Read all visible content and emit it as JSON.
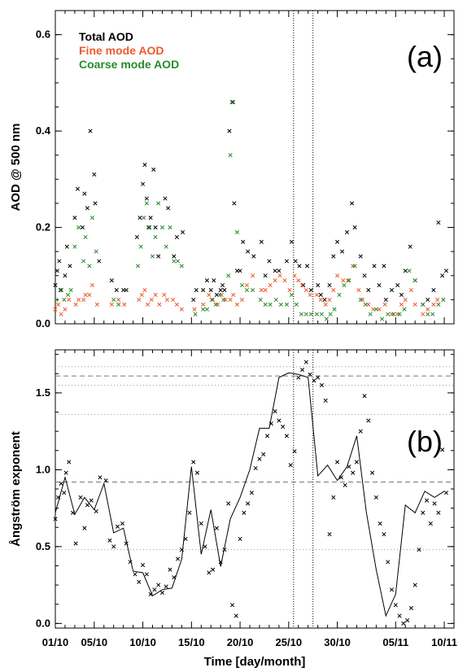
{
  "figure": {
    "xlabel": "Time [day/month]"
  },
  "chart_data": [
    {
      "panel": "a",
      "type": "scatter",
      "panel_label": "(a)",
      "ylabel": "AOD @ 500 nm",
      "xlim": [
        0,
        41
      ],
      "ylim": [
        0,
        0.65
      ],
      "yticks": [
        0.0,
        0.2,
        0.4,
        0.6
      ],
      "ytick_labels": [
        "0.0",
        "0.2",
        "0.4",
        "0.6"
      ],
      "xticks": [
        0,
        4,
        9,
        14,
        19,
        24,
        29,
        35,
        40
      ],
      "xtick_labels": [
        "01/10",
        "05/10",
        "10/10",
        "15/10",
        "20/10",
        "25/10",
        "30/10",
        "05/11",
        "10/11"
      ],
      "legend_position": "top-left",
      "vlines": [
        24.5,
        26.5
      ],
      "series": [
        {
          "name": "Total AOD",
          "color": "#000000",
          "x": [
            0.0,
            0.2,
            0.4,
            0.6,
            1.0,
            1.2,
            1.5,
            2.0,
            2.3,
            2.8,
            3.0,
            3.3,
            3.6,
            4.0,
            4.1,
            4.5,
            5.8,
            6.3,
            7.0,
            7.3,
            8.4,
            8.7,
            9.0,
            9.2,
            9.4,
            9.6,
            9.8,
            10.1,
            10.3,
            10.6,
            11.3,
            11.6,
            12.2,
            12.5,
            13.1,
            14.2,
            14.5,
            15.2,
            15.6,
            16.0,
            16.3,
            16.6,
            17.0,
            17.2,
            17.4,
            17.9,
            18.2,
            18.4,
            18.7,
            19.0,
            19.3,
            19.8,
            20.4,
            21.2,
            21.6,
            22.0,
            22.6,
            23.0,
            23.8,
            24.3,
            24.7,
            25.1,
            25.5,
            25.9,
            26.3,
            27.0,
            27.3,
            27.7,
            28.2,
            28.6,
            29.0,
            29.5,
            30.0,
            30.5,
            30.8,
            31.4,
            31.8,
            32.2,
            32.8,
            33.3,
            33.8,
            34.0,
            34.6,
            35.2,
            35.6,
            36.0,
            36.5,
            37.0,
            37.8,
            38.3,
            38.9,
            39.4,
            39.8,
            40.2
          ],
          "y": [
            0.08,
            0.11,
            0.13,
            0.07,
            0.1,
            0.16,
            0.12,
            0.22,
            0.28,
            0.2,
            0.27,
            0.24,
            0.4,
            0.31,
            0.25,
            0.13,
            0.09,
            0.07,
            0.07,
            0.07,
            0.18,
            0.22,
            0.29,
            0.33,
            0.26,
            0.2,
            0.22,
            0.32,
            0.2,
            0.14,
            0.26,
            0.24,
            0.14,
            0.18,
            0.19,
            0.05,
            0.07,
            0.07,
            0.09,
            0.07,
            0.09,
            0.06,
            0.07,
            0.08,
            0.07,
            0.4,
            0.46,
            0.25,
            0.11,
            0.11,
            0.17,
            0.15,
            0.14,
            0.17,
            0.1,
            0.13,
            0.11,
            0.11,
            0.13,
            0.17,
            0.13,
            0.12,
            0.08,
            0.12,
            0.07,
            0.08,
            0.06,
            0.05,
            0.08,
            0.14,
            0.17,
            0.15,
            0.19,
            0.25,
            0.2,
            0.14,
            0.1,
            0.07,
            0.12,
            0.08,
            0.12,
            0.05,
            0.07,
            0.08,
            0.06,
            0.11,
            0.16,
            0.09,
            0.04,
            0.05,
            0.07,
            0.21,
            0.1,
            0.11
          ]
        },
        {
          "name": "Fine mode AOD",
          "color": "#ee5b2b",
          "x": [
            0.0,
            0.3,
            0.6,
            1.0,
            1.4,
            2.1,
            2.4,
            2.9,
            3.1,
            3.5,
            3.8,
            4.3,
            5.8,
            6.5,
            7.1,
            8.6,
            8.9,
            9.2,
            9.5,
            9.9,
            10.3,
            10.7,
            11.2,
            11.5,
            12.1,
            12.5,
            13.0,
            14.3,
            15.2,
            15.8,
            16.2,
            16.7,
            17.1,
            17.5,
            18.0,
            18.3,
            18.7,
            19.2,
            19.7,
            20.3,
            21.2,
            21.6,
            22.1,
            22.6,
            23.1,
            23.6,
            24.1,
            24.6,
            25.0,
            25.4,
            25.8,
            26.2,
            26.9,
            27.3,
            27.8,
            28.2,
            28.6,
            29.0,
            29.6,
            30.1,
            30.6,
            31.2,
            31.6,
            32.2,
            32.7,
            33.3,
            33.9,
            34.6,
            35.2,
            35.6,
            36.0,
            36.6,
            37.0,
            37.8,
            38.3,
            38.9,
            39.3,
            39.9
          ],
          "y": [
            0.03,
            0.04,
            0.02,
            0.03,
            0.05,
            0.04,
            0.05,
            0.05,
            0.06,
            0.06,
            0.08,
            0.04,
            0.04,
            0.05,
            0.04,
            0.05,
            0.06,
            0.07,
            0.04,
            0.05,
            0.06,
            0.04,
            0.06,
            0.05,
            0.05,
            0.04,
            0.03,
            0.03,
            0.04,
            0.06,
            0.05,
            0.04,
            0.06,
            0.05,
            0.05,
            0.06,
            0.04,
            0.05,
            0.08,
            0.1,
            0.07,
            0.07,
            0.08,
            0.09,
            0.1,
            0.09,
            0.07,
            0.1,
            0.09,
            0.08,
            0.07,
            0.06,
            0.06,
            0.05,
            0.04,
            0.05,
            0.07,
            0.1,
            0.09,
            0.09,
            0.12,
            0.07,
            0.05,
            0.04,
            0.03,
            0.03,
            0.04,
            0.02,
            0.02,
            0.04,
            0.05,
            0.07,
            0.04,
            0.02,
            0.03,
            0.04,
            0.05,
            0.05
          ]
        },
        {
          "name": "Coarse mode AOD",
          "color": "#2a8a2a",
          "x": [
            0.1,
            0.5,
            0.9,
            1.3,
            1.6,
            2.0,
            2.4,
            2.9,
            3.1,
            3.5,
            3.8,
            4.2,
            6.0,
            6.5,
            8.5,
            8.8,
            9.1,
            9.4,
            9.7,
            10.0,
            10.3,
            10.6,
            11.0,
            11.4,
            11.8,
            12.2,
            12.6,
            13.0,
            14.4,
            15.2,
            15.6,
            16.1,
            16.5,
            16.9,
            17.3,
            17.8,
            18.0,
            18.3,
            18.7,
            19.2,
            19.7,
            20.3,
            21.1,
            21.6,
            22.1,
            22.7,
            23.2,
            23.8,
            24.3,
            24.8,
            25.3,
            25.8,
            26.3,
            26.9,
            27.4,
            27.9,
            28.3,
            28.7,
            29.2,
            29.7,
            30.2,
            30.8,
            31.4,
            31.9,
            32.4,
            33.0,
            33.6,
            34.2,
            34.8,
            35.4,
            35.9,
            36.4,
            37.0,
            37.8,
            38.3,
            38.8,
            39.4,
            39.9
          ],
          "y": [
            0.05,
            0.07,
            0.05,
            0.06,
            0.07,
            0.16,
            0.2,
            0.13,
            0.18,
            0.12,
            0.22,
            0.15,
            0.05,
            0.04,
            0.12,
            0.16,
            0.22,
            0.25,
            0.2,
            0.14,
            0.18,
            0.25,
            0.2,
            0.16,
            0.2,
            0.13,
            0.13,
            0.12,
            0.02,
            0.03,
            0.03,
            0.05,
            0.04,
            0.06,
            0.05,
            0.1,
            0.35,
            0.46,
            0.19,
            0.08,
            0.07,
            0.07,
            0.05,
            0.04,
            0.04,
            0.05,
            0.04,
            0.04,
            0.06,
            0.04,
            0.02,
            0.02,
            0.02,
            0.02,
            0.02,
            0.01,
            0.02,
            0.03,
            0.06,
            0.08,
            0.09,
            0.12,
            0.05,
            0.04,
            0.02,
            0.03,
            0.01,
            0.02,
            0.02,
            0.02,
            0.03,
            0.11,
            0.09,
            0.04,
            0.02,
            0.02,
            0.04,
            0.05
          ]
        }
      ]
    },
    {
      "panel": "b",
      "type": "line",
      "panel_label": "(b)",
      "ylabel": "Ångström exponent",
      "xlim": [
        0,
        41
      ],
      "ylim": [
        -0.03,
        1.78
      ],
      "yticks": [
        0.0,
        0.5,
        1.0,
        1.5
      ],
      "ytick_labels": [
        "0.0",
        "0.5",
        "1.0",
        "1.5"
      ],
      "xticks": [
        0,
        4,
        9,
        14,
        19,
        24,
        29,
        35,
        40
      ],
      "xtick_labels": [
        "01/10",
        "05/10",
        "10/10",
        "15/10",
        "20/10",
        "25/10",
        "30/10",
        "05/11",
        "10/11"
      ],
      "vlines": [
        24.5,
        26.5
      ],
      "hlines": [
        {
          "y": 0.48,
          "style": "dotted"
        },
        {
          "y": 0.92,
          "style": "dashed"
        },
        {
          "y": 1.36,
          "style": "dotted"
        },
        {
          "y": 1.55,
          "style": "dotted"
        },
        {
          "y": 1.61,
          "style": "dashed"
        },
        {
          "y": 1.67,
          "style": "dotted"
        }
      ],
      "series": [
        {
          "name": "",
          "color": "#000000",
          "marker": "none",
          "x": [
            0,
            1,
            2,
            3,
            4,
            5,
            6,
            7,
            8,
            9,
            10,
            11,
            12,
            13,
            14,
            15,
            16,
            17,
            18,
            19,
            20,
            21,
            22,
            23,
            24,
            25,
            26,
            27,
            28,
            29,
            30,
            31,
            32,
            33,
            34,
            35,
            36,
            37,
            38,
            39,
            40
          ],
          "y": [
            0.72,
            0.95,
            0.71,
            0.82,
            0.74,
            0.91,
            0.59,
            0.62,
            0.34,
            0.33,
            0.18,
            0.22,
            0.23,
            0.42,
            1.02,
            0.45,
            0.74,
            0.37,
            0.68,
            0.82,
            1.0,
            1.27,
            1.27,
            1.6,
            1.63,
            1.62,
            1.6,
            0.96,
            1.03,
            0.93,
            1.02,
            1.22,
            0.72,
            0.35,
            0.05,
            0.19,
            0.77,
            0.72,
            0.86,
            0.82,
            0.86
          ]
        },
        {
          "name": "",
          "color": "#000000",
          "marker": "x",
          "x": [
            0.0,
            0.3,
            0.6,
            0.9,
            1.1,
            1.4,
            1.8,
            2.1,
            2.6,
            3.0,
            3.3,
            3.7,
            4.2,
            4.6,
            5.2,
            5.6,
            6.0,
            6.4,
            6.9,
            7.3,
            7.7,
            8.2,
            8.6,
            9.0,
            9.4,
            9.8,
            10.2,
            10.6,
            11.0,
            11.4,
            11.8,
            12.2,
            12.6,
            13.0,
            13.4,
            13.8,
            14.2,
            14.6,
            15.0,
            15.4,
            15.8,
            16.2,
            16.6,
            17.0,
            17.4,
            17.8,
            18.2,
            18.6,
            19.0,
            19.4,
            19.8,
            20.2,
            20.6,
            21.0,
            21.4,
            21.8,
            22.2,
            22.6,
            23.0,
            23.4,
            23.8,
            24.2,
            24.6,
            25.0,
            25.4,
            25.8,
            26.2,
            26.6,
            27.0,
            27.4,
            27.8,
            28.2,
            28.6,
            29.0,
            29.4,
            29.8,
            30.2,
            30.6,
            31.0,
            31.4,
            31.8,
            32.2,
            32.6,
            33.0,
            33.4,
            33.8,
            34.2,
            34.6,
            35.0,
            35.4,
            35.8,
            36.2,
            36.6,
            37.0,
            37.4,
            37.8,
            38.2,
            38.6,
            39.0,
            39.4,
            39.8,
            40.2
          ],
          "y": [
            0.68,
            0.82,
            0.91,
            0.85,
            0.98,
            1.05,
            0.72,
            0.52,
            0.82,
            0.62,
            0.77,
            0.8,
            0.73,
            0.95,
            0.93,
            0.54,
            0.5,
            0.63,
            0.65,
            0.52,
            0.4,
            0.32,
            0.27,
            0.38,
            0.32,
            0.19,
            0.22,
            0.25,
            0.2,
            0.24,
            0.35,
            0.3,
            0.42,
            0.48,
            0.55,
            0.72,
            1.05,
            0.98,
            0.65,
            0.5,
            0.33,
            0.35,
            0.62,
            0.4,
            0.48,
            0.78,
            0.12,
            0.05,
            0.55,
            0.72,
            0.78,
            0.85,
            1.01,
            1.07,
            1.1,
            1.22,
            1.3,
            1.38,
            1.32,
            1.28,
            1.22,
            1.03,
            1.12,
            1.6,
            1.65,
            1.7,
            1.62,
            1.58,
            1.6,
            1.55,
            1.45,
            0.58,
            0.82,
            1.05,
            0.95,
            0.9,
            1.02,
            0.98,
            1.05,
            1.25,
            1.48,
            1.32,
            0.98,
            0.82,
            0.65,
            0.58,
            0.4,
            0.22,
            0.12,
            0.05,
            0.0,
            0.02,
            0.1,
            0.25,
            0.48,
            0.72,
            0.8,
            0.65,
            0.78,
            0.72,
            1.13,
            0.85
          ]
        }
      ]
    }
  ]
}
